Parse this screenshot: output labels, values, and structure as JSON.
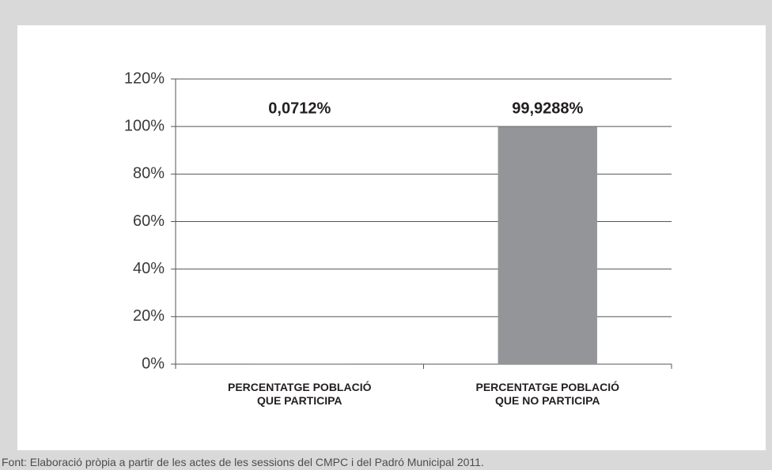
{
  "chart_data": {
    "type": "bar",
    "categories": [
      "PERCENTATGE POBLACIÓ QUE PARTICIPA",
      "PERCENTATGE POBLACIÓ QUE NO PARTICIPA"
    ],
    "values": [
      0.0712,
      99.9288
    ],
    "value_labels": [
      "0,0712%",
      "99,9288%"
    ],
    "colors": [
      "#6d6e71",
      "#939598"
    ],
    "ylim": [
      0,
      120
    ],
    "yticks": [
      {
        "value": 0,
        "label": "0%"
      },
      {
        "value": 20,
        "label": "20%"
      },
      {
        "value": 40,
        "label": "40%"
      },
      {
        "value": 60,
        "label": "60%"
      },
      {
        "value": 80,
        "label": "80%"
      },
      {
        "value": 100,
        "label": "100%"
      },
      {
        "value": 120,
        "label": "120%"
      }
    ],
    "grid": true,
    "source": "Font: Elaboració pròpia a partir de les actes de les sessions del CMPC i del Padró Municipal 2011."
  }
}
